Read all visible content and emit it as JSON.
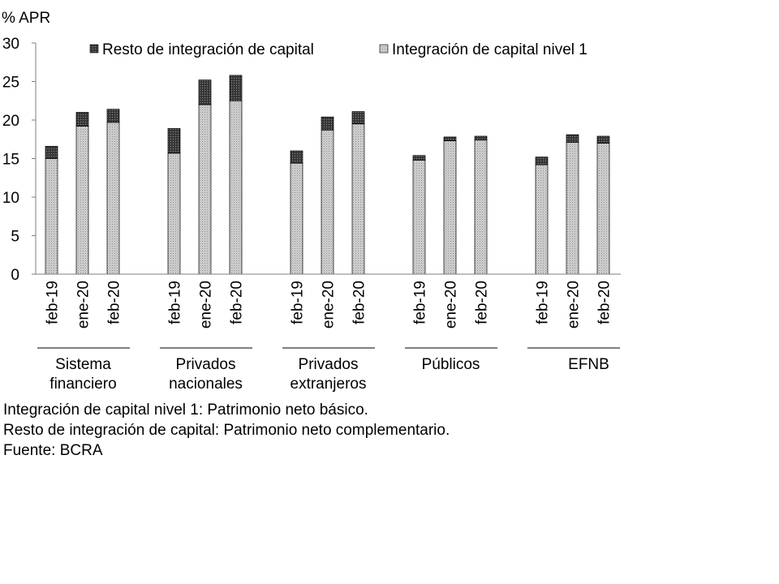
{
  "chart_data": {
    "type": "stacked-bar",
    "yunit": "% APR",
    "ylim": [
      0,
      30
    ],
    "yticks": [
      0,
      5,
      10,
      15,
      20,
      25,
      30
    ],
    "legend": {
      "placement": "top",
      "entries": [
        {
          "label": "Resto de integración de capital",
          "pattern": "dark-dotted",
          "color": "#3a3a3a"
        },
        {
          "label": "Integración de capital nivel 1",
          "pattern": "light-dotted",
          "color": "#c8c8c8"
        }
      ]
    },
    "groups": [
      {
        "name": "Sistema financiero",
        "name_lines": [
          "Sistema",
          "financiero"
        ],
        "bars": [
          {
            "label": "feb-19",
            "nivel1": 15.0,
            "resto": 1.6
          },
          {
            "label": "ene-20",
            "nivel1": 19.2,
            "resto": 1.8
          },
          {
            "label": "feb-20",
            "nivel1": 19.7,
            "resto": 1.7
          }
        ]
      },
      {
        "name": "Privados nacionales",
        "name_lines": [
          "Privados",
          "nacionales"
        ],
        "bars": [
          {
            "label": "feb-19",
            "nivel1": 15.7,
            "resto": 3.2
          },
          {
            "label": "ene-20",
            "nivel1": 22.0,
            "resto": 3.2
          },
          {
            "label": "feb-20",
            "nivel1": 22.5,
            "resto": 3.3
          }
        ]
      },
      {
        "name": "Privados extranjeros",
        "name_lines": [
          "Privados",
          "extranjeros"
        ],
        "bars": [
          {
            "label": "feb-19",
            "nivel1": 14.4,
            "resto": 1.6
          },
          {
            "label": "ene-20",
            "nivel1": 18.7,
            "resto": 1.7
          },
          {
            "label": "feb-20",
            "nivel1": 19.5,
            "resto": 1.6
          }
        ]
      },
      {
        "name": "Públicos",
        "name_lines": [
          "Públicos"
        ],
        "bars": [
          {
            "label": "feb-19",
            "nivel1": 14.8,
            "resto": 0.6
          },
          {
            "label": "ene-20",
            "nivel1": 17.3,
            "resto": 0.5
          },
          {
            "label": "feb-20",
            "nivel1": 17.4,
            "resto": 0.5
          }
        ]
      },
      {
        "name": "EFNB",
        "name_lines": [
          "EFNB"
        ],
        "bars": [
          {
            "label": "feb-19",
            "nivel1": 14.2,
            "resto": 1.0
          },
          {
            "label": "ene-20",
            "nivel1": 17.1,
            "resto": 1.0
          },
          {
            "label": "feb-20",
            "nivel1": 17.0,
            "resto": 0.9
          }
        ]
      }
    ]
  },
  "notes": {
    "line1": "Integración de capital nivel 1: Patrimonio neto básico.",
    "line2": "Resto de integración de capital: Patrimonio neto complementario.",
    "source": "Fuente: BCRA"
  }
}
